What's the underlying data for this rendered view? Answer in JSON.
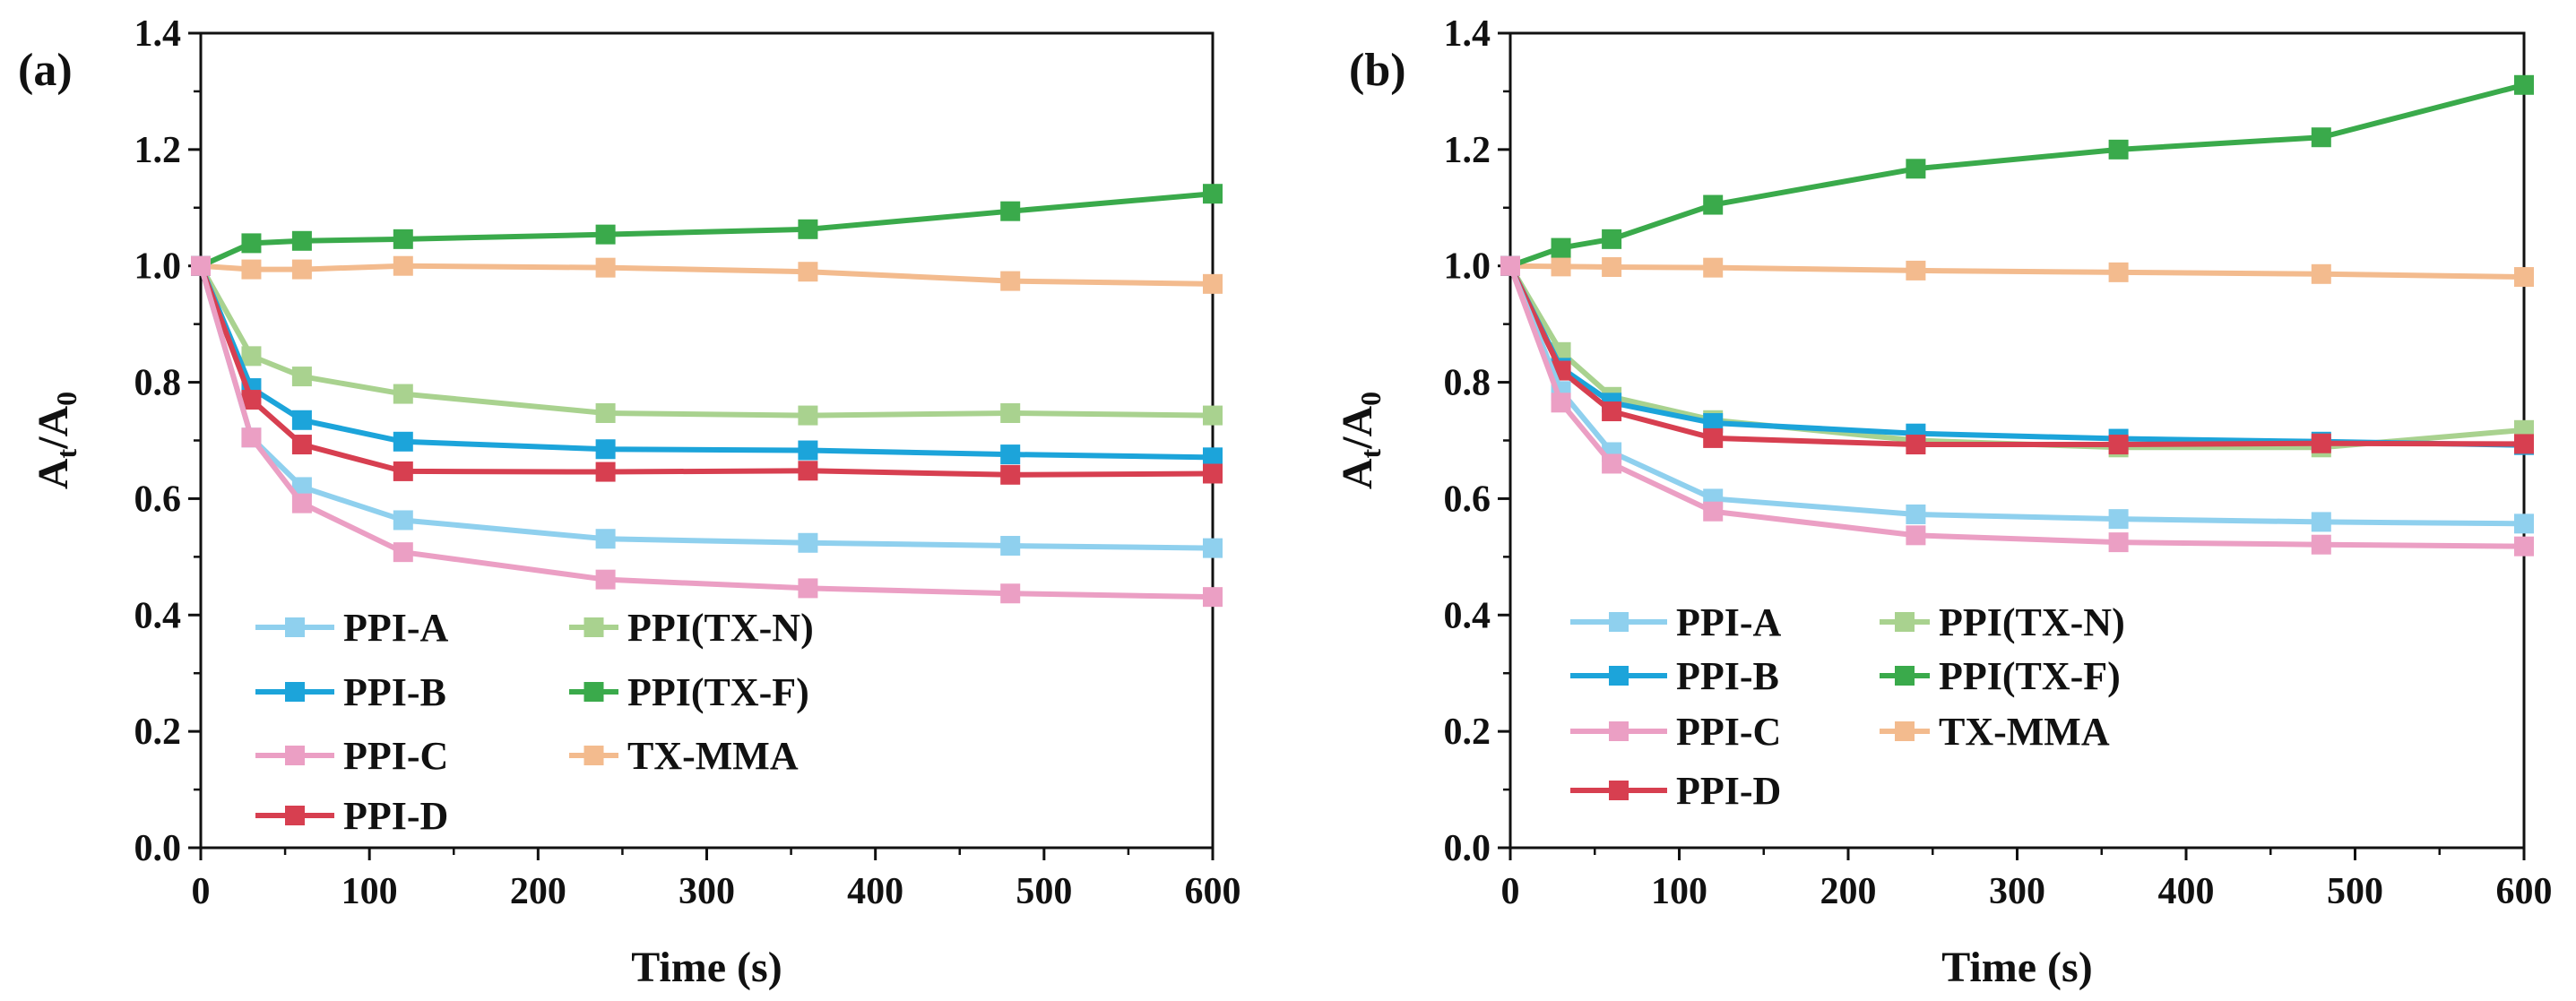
{
  "chart_data": [
    {
      "panel_label": "(a)",
      "type": "line",
      "xlabel": "Time (s)",
      "ylabel": {
        "a": "A",
        "t": "t",
        "slash": "/A",
        "zero": "0"
      },
      "xlim": [
        0,
        600
      ],
      "ylim": [
        0,
        1.4
      ],
      "xticks": [
        "0",
        "100",
        "200",
        "300",
        "400",
        "500",
        "600"
      ],
      "yticks": [
        "0.0",
        "0.2",
        "0.4",
        "0.6",
        "0.8",
        "1.0",
        "1.2",
        "1.4"
      ],
      "legend_position": "lower-left",
      "x": [
        0,
        30,
        60,
        120,
        240,
        360,
        480,
        600
      ],
      "series": [
        {
          "name": "PPI-A",
          "color": "#8fd0ee",
          "values": [
            1.0,
            0.705,
            0.62,
            0.563,
            0.531,
            0.524,
            0.519,
            0.515
          ]
        },
        {
          "name": "PPI-B",
          "color": "#1ca4da",
          "values": [
            1.0,
            0.79,
            0.735,
            0.698,
            0.685,
            0.683,
            0.676,
            0.671
          ]
        },
        {
          "name": "PPI-C",
          "color": "#eb9fc4",
          "values": [
            1.0,
            0.705,
            0.592,
            0.508,
            0.461,
            0.446,
            0.437,
            0.431
          ]
        },
        {
          "name": "PPI-D",
          "color": "#d73f50",
          "values": [
            1.0,
            0.77,
            0.693,
            0.647,
            0.646,
            0.648,
            0.641,
            0.643
          ]
        },
        {
          "name": "PPI(TX-N)",
          "color": "#a9d28f",
          "values": [
            1.0,
            0.845,
            0.81,
            0.78,
            0.747,
            0.743,
            0.747,
            0.743
          ]
        },
        {
          "name": "PPI(TX-F)",
          "color": "#3aaa4b",
          "values": [
            1.0,
            1.039,
            1.043,
            1.046,
            1.054,
            1.063,
            1.094,
            1.124
          ]
        },
        {
          "name": "TX-MMA",
          "color": "#f3bb8e",
          "values": [
            1.0,
            0.994,
            0.994,
            1.0,
            0.997,
            0.99,
            0.974,
            0.969
          ]
        }
      ]
    },
    {
      "panel_label": "(b)",
      "type": "line",
      "xlabel": "Time (s)",
      "ylabel": {
        "a": "A",
        "t": "t",
        "slash": "/A",
        "zero": "0"
      },
      "xlim": [
        0,
        600
      ],
      "ylim": [
        0,
        1.4
      ],
      "xticks": [
        "0",
        "100",
        "200",
        "300",
        "400",
        "500",
        "600"
      ],
      "yticks": [
        "0.0",
        "0.2",
        "0.4",
        "0.6",
        "0.8",
        "1.0",
        "1.2",
        "1.4"
      ],
      "legend_position": "lower-left",
      "x": [
        0,
        30,
        60,
        120,
        240,
        360,
        480,
        600
      ],
      "series": [
        {
          "name": "PPI-A",
          "color": "#8fd0ee",
          "values": [
            1.0,
            0.785,
            0.68,
            0.6,
            0.573,
            0.565,
            0.56,
            0.557
          ]
        },
        {
          "name": "PPI-B",
          "color": "#1ca4da",
          "values": [
            1.0,
            0.825,
            0.765,
            0.73,
            0.712,
            0.703,
            0.698,
            0.692
          ]
        },
        {
          "name": "PPI-C",
          "color": "#eb9fc4",
          "values": [
            1.0,
            0.765,
            0.66,
            0.578,
            0.537,
            0.525,
            0.521,
            0.518
          ]
        },
        {
          "name": "PPI-D",
          "color": "#d73f50",
          "values": [
            1.0,
            0.82,
            0.75,
            0.704,
            0.693,
            0.693,
            0.695,
            0.694
          ]
        },
        {
          "name": "PPI(TX-N)",
          "color": "#a9d28f",
          "values": [
            1.0,
            0.852,
            0.775,
            0.735,
            0.7,
            0.688,
            0.688,
            0.718
          ]
        },
        {
          "name": "PPI(TX-F)",
          "color": "#3aaa4b",
          "values": [
            1.0,
            1.031,
            1.046,
            1.105,
            1.167,
            1.2,
            1.221,
            1.311
          ]
        },
        {
          "name": "TX-MMA",
          "color": "#f3bb8e",
          "values": [
            1.0,
            0.999,
            0.998,
            0.997,
            0.992,
            0.989,
            0.986,
            0.981
          ]
        }
      ]
    }
  ]
}
